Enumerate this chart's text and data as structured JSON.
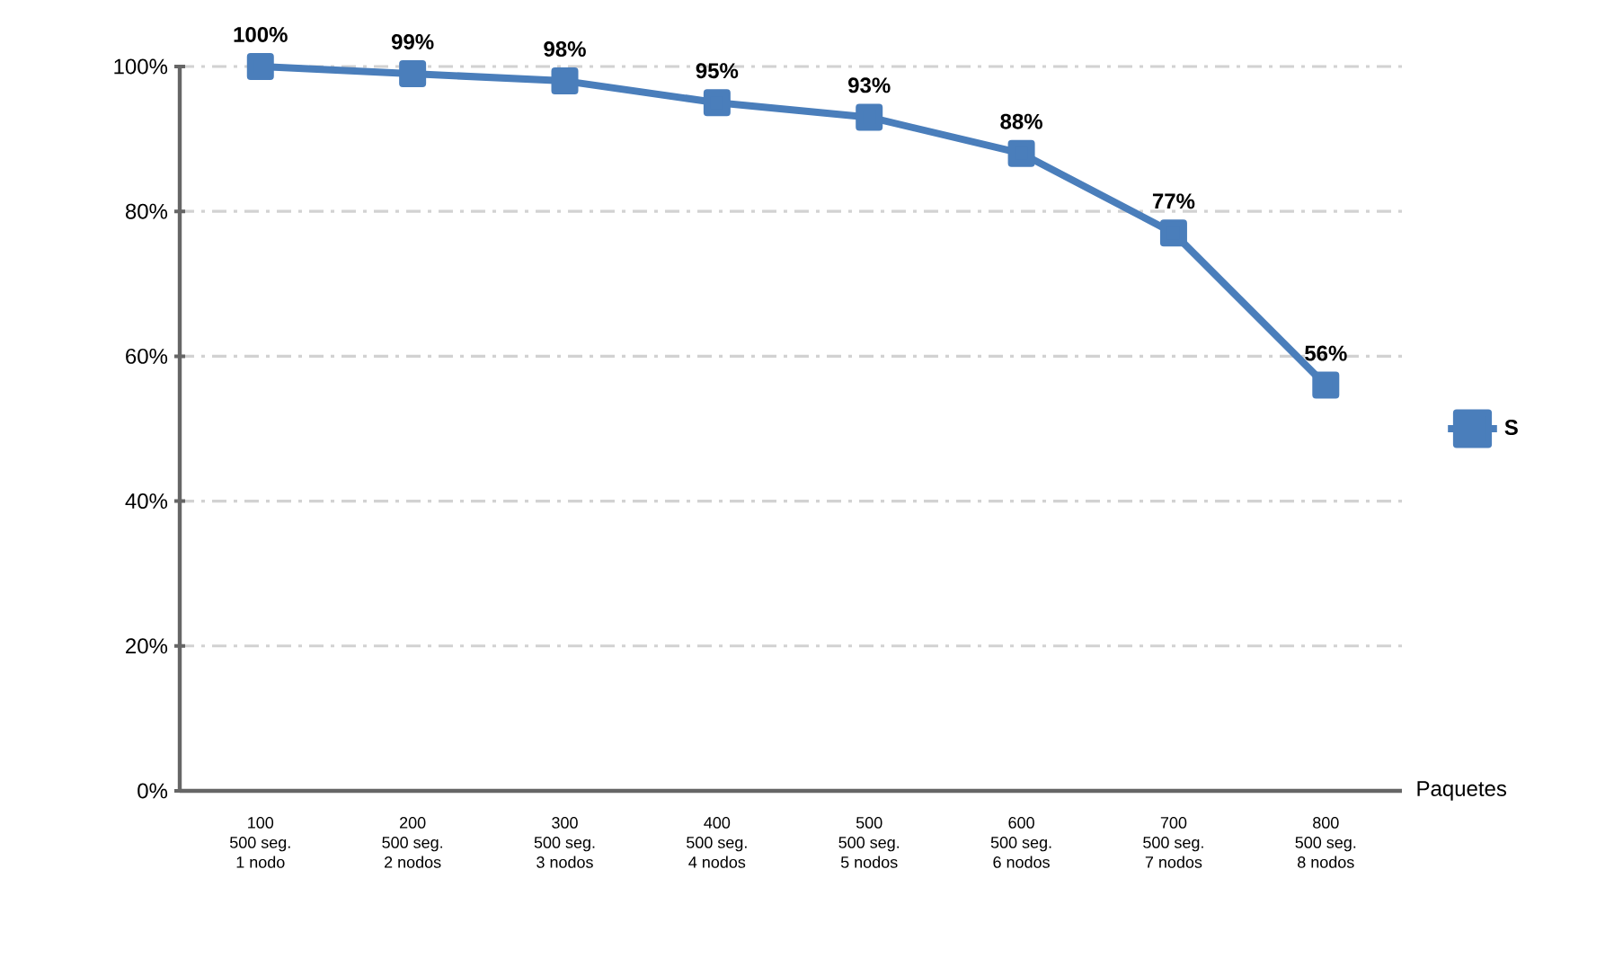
{
  "chart_data": {
    "type": "line",
    "categories": [
      "100\n500 seg.\n1 nodo",
      "200\n500 seg.\n2 nodos",
      "300\n500 seg.\n3 nodos",
      "400\n500 seg.\n4 nodos",
      "500\n500 seg.\n5 nodos",
      "600\n500 seg.\n6 nodos",
      "700\n500 seg.\n7 nodos",
      "800\n500 seg.\n8 nodos"
    ],
    "series": [
      {
        "name": "S",
        "color": "#4a7ebb",
        "values": [
          100,
          99,
          98,
          95,
          93,
          88,
          77,
          56
        ],
        "value_labels": [
          "100%",
          "99%",
          "98%",
          "95%",
          "93%",
          "88%",
          "77%",
          "56%"
        ]
      }
    ],
    "xlabel": "Paquetes",
    "ylim": [
      0,
      100
    ],
    "yticks": [
      {
        "value": 0,
        "label": "0%"
      },
      {
        "value": 20,
        "label": "20%"
      },
      {
        "value": 40,
        "label": "40%"
      },
      {
        "value": 60,
        "label": "60%"
      },
      {
        "value": 80,
        "label": "80%"
      },
      {
        "value": 100,
        "label": "100%"
      }
    ],
    "grid": "y",
    "legend": "right",
    "marker": "square",
    "line_style": "solid"
  }
}
